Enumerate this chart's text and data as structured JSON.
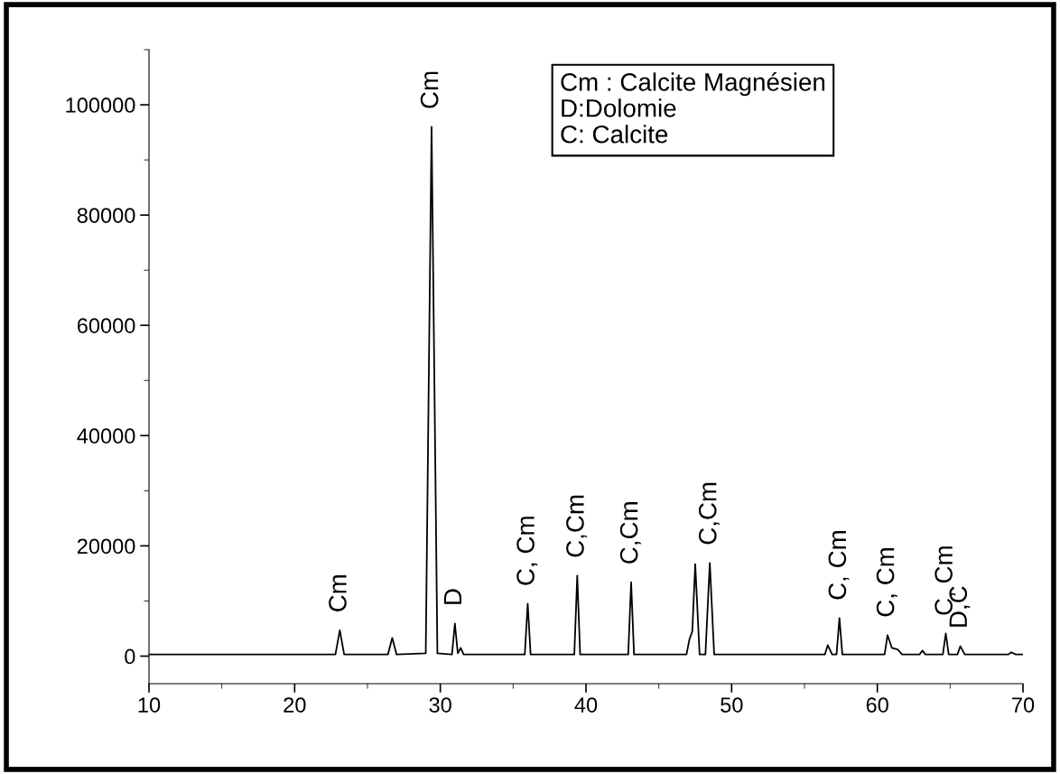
{
  "chart_data": {
    "type": "line",
    "color": "#000000",
    "x": [
      10,
      20,
      22.8,
      23.1,
      23.4,
      26.4,
      26.7,
      27.0,
      29.0,
      29.4,
      29.8,
      30.8,
      31.0,
      31.2,
      31.4,
      31.6,
      35.8,
      36.0,
      36.2,
      39.2,
      39.4,
      39.6,
      42.9,
      43.1,
      43.3,
      46.9,
      47.1,
      47.3,
      47.5,
      47.8,
      48.2,
      48.5,
      48.8,
      50.6,
      56.4,
      56.6,
      56.9,
      57.2,
      57.4,
      57.6,
      60.5,
      60.7,
      61.0,
      61.4,
      61.7,
      62.9,
      63.1,
      63.3,
      64.5,
      64.7,
      64.9,
      65.5,
      65.7,
      66.0,
      69.0,
      69.2,
      69.5,
      70
    ],
    "values": [
      300,
      300,
      300,
      4700,
      300,
      300,
      3300,
      300,
      500,
      96000,
      500,
      300,
      5900,
      500,
      1500,
      300,
      300,
      9500,
      300,
      300,
      14600,
      300,
      300,
      13400,
      300,
      300,
      3000,
      4500,
      16700,
      300,
      300,
      16900,
      300,
      300,
      300,
      2000,
      300,
      300,
      6900,
      300,
      300,
      3800,
      1500,
      1200,
      300,
      300,
      1000,
      300,
      300,
      4100,
      300,
      300,
      1800,
      300,
      300,
      700,
      300,
      300
    ],
    "xlim": [
      10,
      70
    ],
    "xticks": [
      10,
      20,
      30,
      40,
      50,
      60,
      70
    ],
    "ylim": [
      -5000,
      110000
    ],
    "yticks": [
      0,
      20000,
      40000,
      60000,
      80000,
      100000
    ],
    "annotations": [
      {
        "text": "Cm",
        "x": 23.1,
        "y": 4700
      },
      {
        "text": "Cm",
        "x": 29.4,
        "y": 96000
      },
      {
        "text": "D",
        "x": 31.0,
        "y": 5900
      },
      {
        "text": "C, Cm",
        "x": 36.0,
        "y": 9500
      },
      {
        "text": "C,Cm",
        "x": 39.4,
        "y": 14600
      },
      {
        "text": "C,Cm",
        "x": 43.1,
        "y": 13400
      },
      {
        "text": "C,Cm",
        "x": 48.5,
        "y": 16900
      },
      {
        "text": "C, Cm",
        "x": 57.4,
        "y": 6900
      },
      {
        "text": "C, Cm",
        "x": 60.7,
        "y": 3800
      },
      {
        "text": "C, Cm",
        "x": 64.7,
        "y": 4100
      },
      {
        "text": "D,C",
        "x": 65.7,
        "y": 1800
      },
      "Cm : Calcite Magnésien",
      "D:Dolomie",
      "C: Calcite"
    ]
  }
}
